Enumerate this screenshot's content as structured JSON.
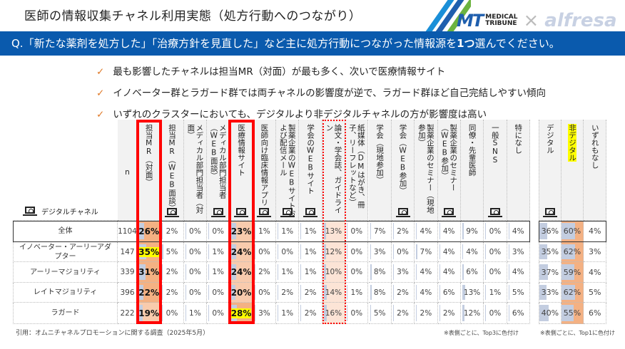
{
  "header": {
    "title": "医師の情報収集チャネル利用実態（処方行動へのつながり）",
    "logo_mt": "MT",
    "logo_medical": "MEDICAL",
    "logo_tribune": "TRIBUNE",
    "logo_x": "×",
    "logo_alfresa": "alfresa"
  },
  "question": {
    "pre": "Q.「新たな薬剤を処方した」「治療方針を見直した」など主に処方行動につながった情報源を",
    "bold": "1つ",
    "post": "選んでください。"
  },
  "bullets": [
    "最も影響したチャネルは担当MR（対面）が最も多く、次いで医療情報サイト",
    "イノベーター群とラガード群では両チャネルの影響度が逆で、ラガード群ほど自己完結しやすい傾向",
    "いずれのクラスターにおいても、デジタルより非デジタルチャネルの方が影響度は高い"
  ],
  "legend": {
    "label": "デジタルチャネル",
    "icon": "monitor-icon"
  },
  "colors": {
    "accent": "#0a5aad",
    "bar": "#c3cde0",
    "rank1": "#f4b183",
    "rank2": "#f8cbad",
    "rank3": "#fce4d6",
    "highlight": "#ffff00",
    "box": "#ff0000"
  },
  "table": {
    "n_label": "n",
    "columns": [
      {
        "label": "担当MR（対面）",
        "digital": false,
        "box": "solid"
      },
      {
        "label": "担当MR（WEB面談）",
        "digital": true
      },
      {
        "label": "メディカル部門担当者（対面）",
        "digital": false
      },
      {
        "label": "メディカル部門担当者（WEB面談）",
        "digital": true
      },
      {
        "label": "医療情報サイト",
        "digital": true,
        "box": "solid"
      },
      {
        "label": "医師向け臨床情報アプリ",
        "digital": true
      },
      {
        "label": "製薬企業のWEBサイトおよび配信メール",
        "digital": true
      },
      {
        "label": "学会のWEBサイト",
        "digital": true
      },
      {
        "label": "論文・学会誌、ガイドライン",
        "digital": false,
        "box": "dotted"
      },
      {
        "label": "紙媒体（DMはがき、冊子、リーフレットなど）",
        "digital": false
      },
      {
        "label": "学会（現地参加）",
        "digital": false
      },
      {
        "label": "学会（WEB参加）",
        "digital": true
      },
      {
        "label": "製薬企業のセミナー（現地参加）",
        "digital": false
      },
      {
        "label": "製薬企業のセミナー（WEB参加）",
        "digital": true
      },
      {
        "label": "同僚・先輩医師",
        "digital": false
      },
      {
        "label": "一般SNS",
        "digital": true
      },
      {
        "label": "特になし",
        "digital": false
      }
    ],
    "rows": [
      {
        "label": "全体",
        "n": "1104",
        "values": [
          26,
          2,
          0,
          0,
          23,
          1,
          1,
          1,
          13,
          0,
          7,
          2,
          4,
          4,
          9,
          0,
          4
        ],
        "highlight": []
      },
      {
        "label": "イノベーター・アーリーアダプター",
        "n": "147",
        "values": [
          35,
          5,
          0,
          1,
          24,
          0,
          0,
          1,
          12,
          0,
          3,
          0,
          7,
          4,
          4,
          0,
          3
        ],
        "highlight": [
          0
        ]
      },
      {
        "label": "アーリーマジョリティ",
        "n": "339",
        "values": [
          31,
          2,
          0,
          1,
          24,
          2,
          1,
          1,
          10,
          0,
          8,
          3,
          4,
          4,
          6,
          0,
          4
        ],
        "highlight": []
      },
      {
        "label": "レイトマジョリティ",
        "n": "396",
        "values": [
          22,
          2,
          0,
          0,
          20,
          0,
          2,
          2,
          14,
          1,
          8,
          2,
          4,
          6,
          13,
          1,
          5
        ],
        "highlight": []
      },
      {
        "label": "ラガード",
        "n": "222",
        "values": [
          19,
          0,
          1,
          0,
          28,
          3,
          1,
          2,
          16,
          0,
          5,
          2,
          2,
          2,
          12,
          0,
          6
        ],
        "highlight": [
          4
        ]
      }
    ],
    "note": "※表側ごとに、Top3に色付け"
  },
  "summary": {
    "columns": [
      {
        "label": "デジタル",
        "digital": true,
        "highlight": false
      },
      {
        "label": "非デジタル",
        "digital": false,
        "highlight": true
      },
      {
        "label": "いずれもなし",
        "digital": false,
        "highlight": false
      }
    ],
    "rows": [
      [
        36,
        60,
        4
      ],
      [
        35,
        62,
        3
      ],
      [
        37,
        59,
        4
      ],
      [
        33,
        62,
        5
      ],
      [
        40,
        55,
        6
      ]
    ],
    "note": "※表側ごとに、Top1に色付け"
  },
  "source": "引用：オムニチャネルプロモーションに関する調査（2025年5月）"
}
